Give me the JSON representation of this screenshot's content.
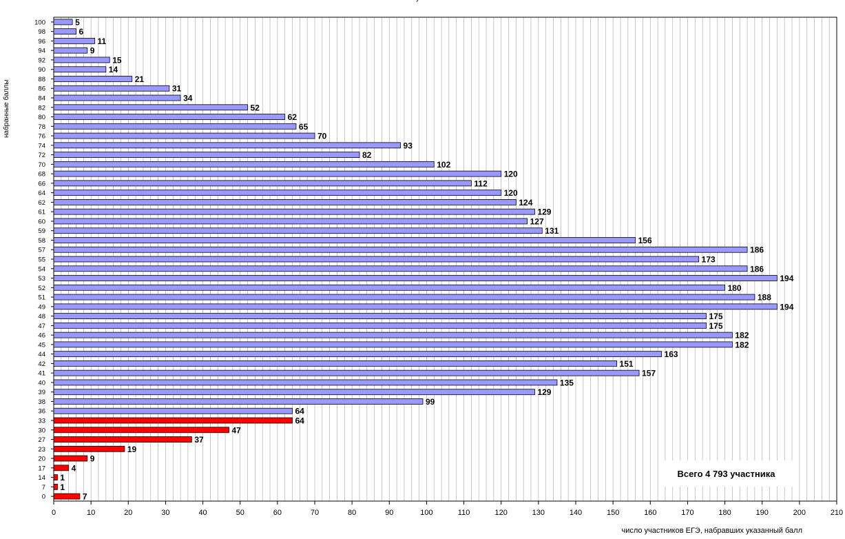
{
  "chart_data": {
    "type": "bar",
    "orientation": "horizontal",
    "ylabel": "набранные баллы",
    "xlabel": "число участников ЕГЭ, набравших указанный балл",
    "xlim": [
      0,
      210
    ],
    "x_ticks": [
      0,
      10,
      20,
      30,
      40,
      50,
      60,
      70,
      80,
      90,
      100,
      110,
      120,
      130,
      140,
      150,
      160,
      170,
      180,
      190,
      200,
      210
    ],
    "grid": true,
    "annotation": "Всего 4 793 участника",
    "colors": {
      "pass": "#9999ff",
      "fail": "#ff0000",
      "border": "#000000"
    },
    "categories": [
      "100",
      "98",
      "96",
      "94",
      "92",
      "90",
      "88",
      "86",
      "84",
      "82",
      "80",
      "78",
      "76",
      "74",
      "72",
      "70",
      "68",
      "66",
      "64",
      "62",
      "61",
      "60",
      "59",
      "58",
      "57",
      "55",
      "54",
      "53",
      "52",
      "51",
      "49",
      "48",
      "47",
      "46",
      "45",
      "44",
      "42",
      "41",
      "40",
      "39",
      "38",
      "36",
      "33",
      "30",
      "27",
      "23",
      "20",
      "17",
      "14",
      "7",
      "0"
    ],
    "values": [
      5,
      6,
      11,
      9,
      15,
      14,
      21,
      31,
      34,
      52,
      62,
      65,
      70,
      93,
      82,
      102,
      120,
      112,
      120,
      124,
      129,
      127,
      131,
      156,
      186,
      173,
      186,
      194,
      180,
      188,
      194,
      175,
      175,
      182,
      182,
      163,
      151,
      157,
      135,
      129,
      99,
      64,
      64,
      47,
      37,
      19,
      9,
      4,
      1,
      1,
      7
    ],
    "fail_categories": [
      "33",
      "30",
      "27",
      "23",
      "20",
      "17",
      "14",
      "7",
      "0"
    ]
  }
}
